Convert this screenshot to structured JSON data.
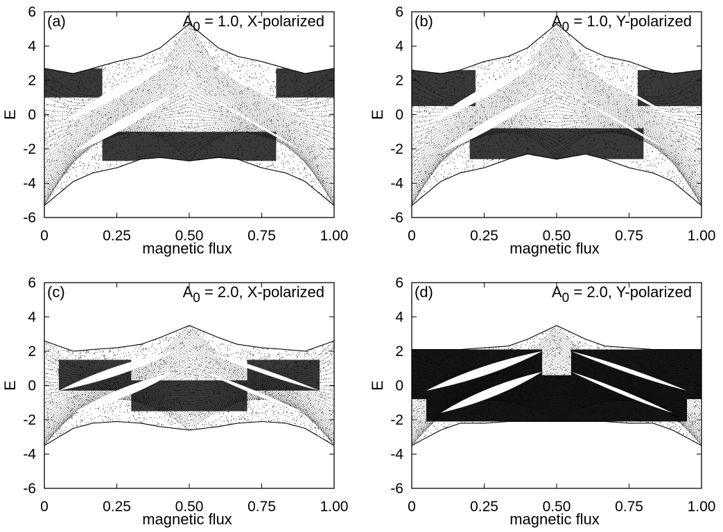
{
  "figure": {
    "panels": [
      {
        "panel_label": "(a)",
        "amp_symbol": "A",
        "amp_subscript": "0",
        "amp_rest": " = 1.0, X-polarized"
      },
      {
        "panel_label": "(b)",
        "amp_symbol": "A",
        "amp_subscript": "0",
        "amp_rest": " = 1.0, Y-polarized"
      },
      {
        "panel_label": "(c)",
        "amp_symbol": "A",
        "amp_subscript": "0",
        "amp_rest": " = 2.0, X-polarized"
      },
      {
        "panel_label": "(d)",
        "amp_symbol": "A",
        "amp_subscript": "0",
        "amp_rest": " = 2.0, Y-polarized"
      }
    ]
  },
  "chart_data": [
    {
      "type": "scatter",
      "title": "A0 = 1.0, X-polarized",
      "panel": "(a)",
      "xlabel": "magnetic flux",
      "ylabel": "E",
      "xlim": [
        0,
        1
      ],
      "ylim": [
        -6,
        6
      ],
      "x_ticks": [
        "0",
        "0.25",
        "0.50",
        "0.75",
        "1.00"
      ],
      "y_ticks": [
        "6",
        "4",
        "2",
        "0",
        "-2",
        "-4",
        "-6"
      ],
      "grid": false,
      "band_edges": [
        {
          "name": "upper",
          "x": [
            0,
            0.1,
            0.167,
            0.25,
            0.333,
            0.4,
            0.5,
            0.6,
            0.667,
            0.75,
            0.833,
            0.9,
            1.0
          ],
          "y": [
            2.7,
            2.4,
            2.7,
            3.1,
            3.4,
            3.9,
            5.3,
            3.9,
            3.4,
            3.1,
            2.7,
            2.4,
            2.7
          ]
        },
        {
          "name": "lower",
          "x": [
            0,
            0.1,
            0.167,
            0.25,
            0.333,
            0.4,
            0.5,
            0.6,
            0.667,
            0.75,
            0.833,
            0.9,
            1.0
          ],
          "y": [
            -5.3,
            -3.9,
            -3.4,
            -3.1,
            -2.6,
            -2.5,
            -2.7,
            -2.5,
            -2.6,
            -3.1,
            -3.4,
            -3.9,
            -5.3
          ]
        }
      ],
      "dense_regions": [
        {
          "x": [
            0,
            0.2
          ],
          "y": [
            1.0,
            2.7
          ]
        },
        {
          "x": [
            0.8,
            1.0
          ],
          "y": [
            1.0,
            2.7
          ]
        },
        {
          "x": [
            0.2,
            0.8
          ],
          "y": [
            -2.7,
            -1.0
          ]
        }
      ]
    },
    {
      "type": "scatter",
      "title": "A0 = 1.0, Y-polarized",
      "panel": "(b)",
      "xlabel": "magnetic flux",
      "ylabel": "E",
      "xlim": [
        0,
        1
      ],
      "ylim": [
        -6,
        6
      ],
      "x_ticks": [
        "0",
        "0.25",
        "0.50",
        "0.75",
        "1.00"
      ],
      "y_ticks": [
        "6",
        "4",
        "2",
        "0",
        "-2",
        "-4",
        "-6"
      ],
      "grid": false,
      "band_edges": [
        {
          "name": "upper",
          "x": [
            0,
            0.1,
            0.167,
            0.25,
            0.333,
            0.4,
            0.5,
            0.6,
            0.667,
            0.75,
            0.833,
            0.9,
            1.0
          ],
          "y": [
            2.6,
            2.4,
            2.6,
            3.1,
            3.4,
            3.9,
            5.3,
            3.9,
            3.4,
            3.1,
            2.6,
            2.4,
            2.6
          ]
        },
        {
          "name": "lower",
          "x": [
            0,
            0.1,
            0.167,
            0.25,
            0.333,
            0.4,
            0.5,
            0.6,
            0.667,
            0.75,
            0.833,
            0.9,
            1.0
          ],
          "y": [
            -5.3,
            -3.9,
            -3.4,
            -3.1,
            -2.6,
            -2.3,
            -2.6,
            -2.3,
            -2.6,
            -3.1,
            -3.4,
            -3.9,
            -5.3
          ]
        }
      ],
      "dense_regions": [
        {
          "x": [
            0,
            0.22
          ],
          "y": [
            0.5,
            2.6
          ]
        },
        {
          "x": [
            0.78,
            1.0
          ],
          "y": [
            0.5,
            2.6
          ]
        },
        {
          "x": [
            0.2,
            0.8
          ],
          "y": [
            -2.6,
            -0.8
          ]
        }
      ]
    },
    {
      "type": "scatter",
      "title": "A0 = 2.0, X-polarized",
      "panel": "(c)",
      "xlabel": "magnetic flux",
      "ylabel": "E",
      "xlim": [
        0,
        1
      ],
      "ylim": [
        -6,
        6
      ],
      "x_ticks": [
        "0",
        "0.25",
        "0.50",
        "0.75",
        "1.00"
      ],
      "y_ticks": [
        "6",
        "4",
        "2",
        "0",
        "-2",
        "-4",
        "-6"
      ],
      "grid": false,
      "band_edges": [
        {
          "name": "upper",
          "x": [
            0,
            0.1,
            0.167,
            0.25,
            0.333,
            0.4,
            0.5,
            0.6,
            0.667,
            0.75,
            0.833,
            0.9,
            1.0
          ],
          "y": [
            2.6,
            2.0,
            2.1,
            2.2,
            2.4,
            2.8,
            3.5,
            2.8,
            2.4,
            2.2,
            2.1,
            2.0,
            2.6
          ]
        },
        {
          "name": "lower",
          "x": [
            0,
            0.1,
            0.167,
            0.25,
            0.333,
            0.4,
            0.5,
            0.6,
            0.667,
            0.75,
            0.833,
            0.9,
            1.0
          ],
          "y": [
            -3.5,
            -2.5,
            -2.2,
            -2.1,
            -2.2,
            -2.4,
            -2.6,
            -2.4,
            -2.2,
            -2.1,
            -2.2,
            -2.5,
            -3.5
          ]
        }
      ],
      "dense_regions": [
        {
          "x": [
            0.05,
            0.3
          ],
          "y": [
            -0.3,
            1.5
          ]
        },
        {
          "x": [
            0.7,
            0.95
          ],
          "y": [
            -0.3,
            1.5
          ]
        },
        {
          "x": [
            0.3,
            0.7
          ],
          "y": [
            -1.5,
            0.3
          ]
        }
      ]
    },
    {
      "type": "scatter",
      "title": "A0 = 2.0, Y-polarized",
      "panel": "(d)",
      "xlabel": "magnetic flux",
      "ylabel": "E",
      "xlim": [
        0,
        1
      ],
      "ylim": [
        -6,
        6
      ],
      "x_ticks": [
        "0",
        "0.25",
        "0.50",
        "0.75",
        "1.00"
      ],
      "y_ticks": [
        "6",
        "4",
        "2",
        "0",
        "-2",
        "-4",
        "-6"
      ],
      "grid": false,
      "band_edges": [
        {
          "name": "upper",
          "x": [
            0,
            0.1,
            0.167,
            0.25,
            0.333,
            0.4,
            0.5,
            0.6,
            0.667,
            0.75,
            0.833,
            0.9,
            1.0
          ],
          "y": [
            2.1,
            2.1,
            2.1,
            2.2,
            2.3,
            2.7,
            3.5,
            2.7,
            2.3,
            2.2,
            2.1,
            2.1,
            2.1
          ]
        },
        {
          "name": "lower",
          "x": [
            0,
            0.1,
            0.167,
            0.25,
            0.333,
            0.4,
            0.5,
            0.6,
            0.667,
            0.75,
            0.833,
            0.9,
            1.0
          ],
          "y": [
            -3.5,
            -2.6,
            -2.2,
            -2.2,
            -2.1,
            -2.1,
            -2.1,
            -2.1,
            -2.1,
            -2.2,
            -2.2,
            -2.6,
            -3.5
          ]
        }
      ],
      "dense_regions": [
        {
          "x": [
            0,
            0.12
          ],
          "y": [
            -0.8,
            2.1
          ]
        },
        {
          "x": [
            0.88,
            1.0
          ],
          "y": [
            -0.8,
            2.1
          ]
        },
        {
          "x": [
            0.3,
            0.7
          ],
          "y": [
            -2.1,
            0.6
          ]
        },
        {
          "x": [
            0.55,
            0.95
          ],
          "y": [
            -2.1,
            2.1
          ]
        },
        {
          "x": [
            0.05,
            0.45
          ],
          "y": [
            -2.1,
            2.1
          ]
        }
      ]
    }
  ]
}
